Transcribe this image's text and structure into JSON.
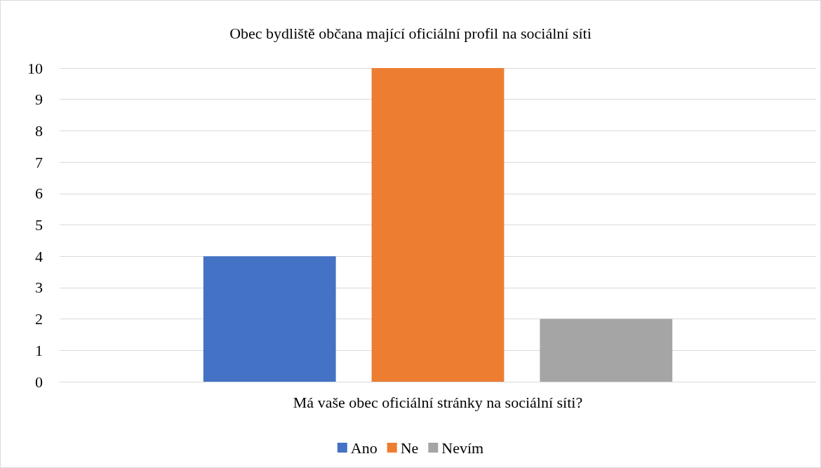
{
  "chart_data": {
    "type": "bar",
    "title": "Obec bydliště občana mající oficiální profil na sociální síti",
    "categories": [
      "Má vaše obec oficiální stránky na sociální síti?"
    ],
    "series": [
      {
        "name": "Ano",
        "color": "#4472c4",
        "values": [
          4
        ]
      },
      {
        "name": "Ne",
        "color": "#ed7d31",
        "values": [
          10
        ]
      },
      {
        "name": "Nevím",
        "color": "#a5a5a5",
        "values": [
          2
        ]
      }
    ],
    "ylim": [
      0,
      10
    ],
    "yticks": [
      0,
      1,
      2,
      3,
      4,
      5,
      6,
      7,
      8,
      9,
      10
    ],
    "grid": "y",
    "legend": "bottom"
  }
}
